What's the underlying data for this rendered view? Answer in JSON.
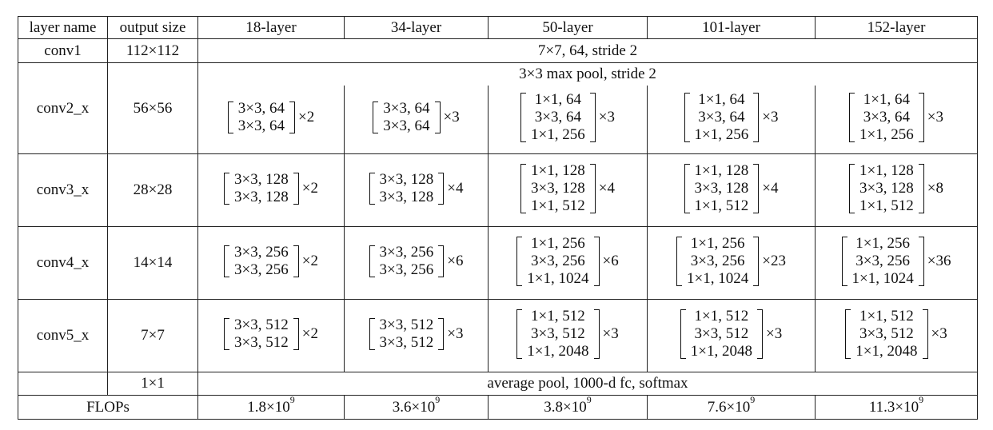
{
  "headers": [
    "layer name",
    "output size",
    "18-layer",
    "34-layer",
    "50-layer",
    "101-layer",
    "152-layer"
  ],
  "conv1": {
    "name": "conv1",
    "size": "112×112",
    "spec": "7×7, 64, stride 2"
  },
  "pool": {
    "spec": "3×3 max pool, stride 2"
  },
  "stages": [
    {
      "name": "conv2_x",
      "size": "56×56",
      "blocks": [
        {
          "lines": [
            "3×3, 64",
            "3×3, 64"
          ],
          "mult": "×2"
        },
        {
          "lines": [
            "3×3, 64",
            "3×3, 64"
          ],
          "mult": "×3"
        },
        {
          "lines": [
            "1×1, 64",
            "3×3, 64",
            "1×1, 256"
          ],
          "mult": "×3"
        },
        {
          "lines": [
            "1×1, 64",
            "3×3, 64",
            "1×1, 256"
          ],
          "mult": "×3"
        },
        {
          "lines": [
            "1×1, 64",
            "3×3, 64",
            "1×1, 256"
          ],
          "mult": "×3"
        }
      ]
    },
    {
      "name": "conv3_x",
      "size": "28×28",
      "blocks": [
        {
          "lines": [
            "3×3, 128",
            "3×3, 128"
          ],
          "mult": "×2"
        },
        {
          "lines": [
            "3×3, 128",
            "3×3, 128"
          ],
          "mult": "×4"
        },
        {
          "lines": [
            "1×1, 128",
            "3×3, 128",
            "1×1, 512"
          ],
          "mult": "×4"
        },
        {
          "lines": [
            "1×1, 128",
            "3×3, 128",
            "1×1, 512"
          ],
          "mult": "×4"
        },
        {
          "lines": [
            "1×1, 128",
            "3×3, 128",
            "1×1, 512"
          ],
          "mult": "×8"
        }
      ]
    },
    {
      "name": "conv4_x",
      "size": "14×14",
      "blocks": [
        {
          "lines": [
            "3×3, 256",
            "3×3, 256"
          ],
          "mult": "×2"
        },
        {
          "lines": [
            "3×3, 256",
            "3×3, 256"
          ],
          "mult": "×6"
        },
        {
          "lines": [
            "1×1, 256",
            "3×3, 256",
            "1×1, 1024"
          ],
          "mult": "×6"
        },
        {
          "lines": [
            "1×1, 256",
            "3×3, 256",
            "1×1, 1024"
          ],
          "mult": "×23"
        },
        {
          "lines": [
            "1×1, 256",
            "3×3, 256",
            "1×1, 1024"
          ],
          "mult": "×36"
        }
      ]
    },
    {
      "name": "conv5_x",
      "size": "7×7",
      "blocks": [
        {
          "lines": [
            "3×3, 512",
            "3×3, 512"
          ],
          "mult": "×2"
        },
        {
          "lines": [
            "3×3, 512",
            "3×3, 512"
          ],
          "mult": "×3"
        },
        {
          "lines": [
            "1×1, 512",
            "3×3, 512",
            "1×1, 2048"
          ],
          "mult": "×3"
        },
        {
          "lines": [
            "1×1, 512",
            "3×3, 512",
            "1×1, 2048"
          ],
          "mult": "×3"
        },
        {
          "lines": [
            "1×1, 512",
            "3×3, 512",
            "1×1, 2048"
          ],
          "mult": "×3"
        }
      ]
    }
  ],
  "final": {
    "size": "1×1",
    "spec": "average pool, 1000-d fc, softmax"
  },
  "flops": {
    "label": "FLOPs",
    "values": [
      {
        "mantissa": "1.8×10",
        "exp": "9"
      },
      {
        "mantissa": "3.6×10",
        "exp": "9"
      },
      {
        "mantissa": "3.8×10",
        "exp": "9"
      },
      {
        "mantissa": "7.6×10",
        "exp": "9"
      },
      {
        "mantissa": "11.3×10",
        "exp": "9"
      }
    ]
  }
}
